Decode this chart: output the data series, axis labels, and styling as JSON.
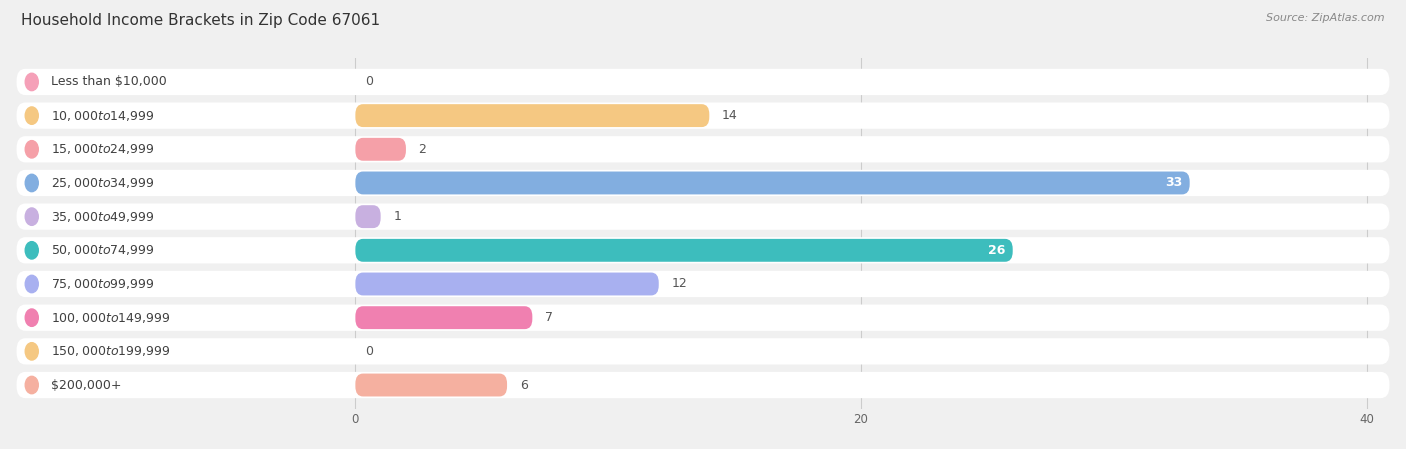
{
  "title": "Household Income Brackets in Zip Code 67061",
  "source": "Source: ZipAtlas.com",
  "categories": [
    "Less than $10,000",
    "$10,000 to $14,999",
    "$15,000 to $24,999",
    "$25,000 to $34,999",
    "$35,000 to $49,999",
    "$50,000 to $74,999",
    "$75,000 to $99,999",
    "$100,000 to $149,999",
    "$150,000 to $199,999",
    "$200,000+"
  ],
  "values": [
    0,
    14,
    2,
    33,
    1,
    26,
    12,
    7,
    0,
    6
  ],
  "bar_colors": [
    "#f5a0b8",
    "#f5c882",
    "#f5a0a8",
    "#82aee0",
    "#c8b0e0",
    "#3dbdbd",
    "#a8b0f0",
    "#f080b0",
    "#f5c882",
    "#f5b0a0"
  ],
  "xlim_data": 40,
  "xticks": [
    0,
    20,
    40
  ],
  "background_color": "#f0f0f0",
  "row_bg_color": "#f8f8f8",
  "title_fontsize": 11,
  "source_fontsize": 8,
  "label_fontsize": 9,
  "value_fontsize": 9
}
